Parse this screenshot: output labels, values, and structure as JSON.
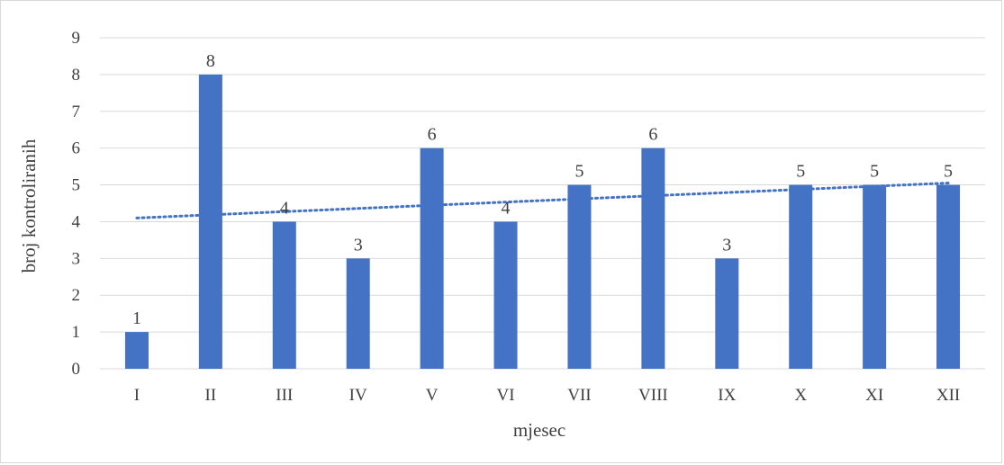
{
  "chart_data": {
    "type": "bar",
    "title": "",
    "xlabel": "mjesec",
    "ylabel": "broj kontroliranih",
    "categories": [
      "I",
      "II",
      "III",
      "IV",
      "V",
      "VI",
      "VII",
      "VIII",
      "IX",
      "X",
      "XI",
      "XII"
    ],
    "values": [
      1,
      8,
      4,
      3,
      6,
      4,
      5,
      6,
      3,
      5,
      5,
      5
    ],
    "ylim": [
      0,
      9
    ],
    "yticks": [
      0,
      1,
      2,
      3,
      4,
      5,
      6,
      7,
      8,
      9
    ],
    "grid": true,
    "data_labels": true,
    "trendline": {
      "type": "linear",
      "style": "dotted",
      "start": 4.1,
      "end": 5.05
    },
    "colors": {
      "bar": "#4472c4",
      "trend": "#4472c4",
      "grid": "#d9d9d9",
      "text": "#404040"
    }
  }
}
